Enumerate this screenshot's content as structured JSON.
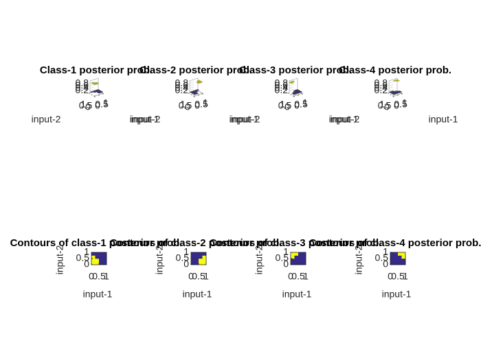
{
  "chart_data": [
    {
      "type": "surface",
      "title": "Class-1 posterior prob.",
      "xlabel": "input-1",
      "ylabel": "input-2",
      "xlim": [
        0,
        1
      ],
      "ylim": [
        0,
        1
      ],
      "zlim": [
        0,
        1
      ],
      "xticks": [
        0,
        0.5,
        1
      ],
      "yticks": [
        0,
        0.5,
        1
      ],
      "zticks": [
        0.2,
        0.4,
        0.6,
        0.8
      ],
      "colormap": [
        "#352a87",
        "#f9fb0e"
      ],
      "z": [
        [
          0.9,
          0.9,
          0.1,
          0.1
        ],
        [
          0.9,
          0.9,
          0.1,
          0.1
        ],
        [
          0.9,
          0.1,
          0.1,
          0.1
        ],
        [
          0.1,
          0.1,
          0.1,
          0.1
        ]
      ]
    },
    {
      "type": "surface",
      "title": "Class-2 posterior prob.",
      "xlabel": "input-1",
      "ylabel": "input-2",
      "xlim": [
        0,
        1
      ],
      "ylim": [
        0,
        1
      ],
      "zlim": [
        0,
        1
      ],
      "xticks": [
        0,
        0.5,
        1
      ],
      "yticks": [
        0,
        0.5,
        1
      ],
      "zticks": [
        0.2,
        0.4,
        0.6,
        0.8
      ],
      "colormap": [
        "#352a87",
        "#f9fb0e"
      ],
      "z": [
        [
          0.1,
          0.1,
          0.9,
          0.9
        ],
        [
          0.1,
          0.1,
          0.9,
          0.9
        ],
        [
          0.1,
          0.1,
          0.1,
          0.9
        ],
        [
          0.1,
          0.1,
          0.1,
          0.1
        ]
      ]
    },
    {
      "type": "surface",
      "title": "Class-3 posterior prob.",
      "xlabel": "input-1",
      "ylabel": "input-2",
      "xlim": [
        0,
        1
      ],
      "ylim": [
        0,
        1
      ],
      "zlim": [
        0,
        1
      ],
      "xticks": [
        0,
        0.5,
        1
      ],
      "yticks": [
        0,
        0.5,
        1
      ],
      "zticks": [
        0.2,
        0.4,
        0.6,
        0.8
      ],
      "colormap": [
        "#352a87",
        "#f9fb0e"
      ],
      "z": [
        [
          0.1,
          0.1,
          0.1,
          0.1
        ],
        [
          0.1,
          0.1,
          0.1,
          0.1
        ],
        [
          0.9,
          0.1,
          0.1,
          0.1
        ],
        [
          0.9,
          0.9,
          0.1,
          0.1
        ]
      ]
    },
    {
      "type": "surface",
      "title": "Class-4 posterior prob.",
      "xlabel": "input-1",
      "ylabel": "input-2",
      "xlim": [
        0,
        1
      ],
      "ylim": [
        0,
        1
      ],
      "zlim": [
        0,
        1
      ],
      "xticks": [
        0,
        0.5,
        1
      ],
      "yticks": [
        0,
        0.5,
        1
      ],
      "zticks": [
        0.2,
        0.4,
        0.6,
        0.8
      ],
      "colormap": [
        "#352a87",
        "#f9fb0e"
      ],
      "z": [
        [
          0.1,
          0.1,
          0.1,
          0.1
        ],
        [
          0.1,
          0.1,
          0.1,
          0.1
        ],
        [
          0.1,
          0.1,
          0.1,
          0.9
        ],
        [
          0.1,
          0.1,
          0.9,
          0.9
        ]
      ]
    },
    {
      "type": "contour",
      "title": "Contours of class-1 posterior prob.",
      "xlabel": "input-1",
      "ylabel": "input-2",
      "xlim": [
        0,
        1
      ],
      "ylim": [
        0,
        1
      ],
      "xticks": [
        0,
        0.5,
        1
      ],
      "yticks": [
        0,
        0.5,
        1
      ],
      "colormap": [
        "#352a87",
        "#f9fb0e"
      ],
      "z": [
        [
          1,
          1,
          0,
          0
        ],
        [
          1,
          1,
          0,
          0
        ],
        [
          1,
          0,
          0,
          0
        ],
        [
          0,
          0,
          0,
          0
        ]
      ]
    },
    {
      "type": "contour",
      "title": "Contours of class-2 posterior prob.",
      "xlabel": "input-1",
      "ylabel": "input-2",
      "xlim": [
        0,
        1
      ],
      "ylim": [
        0,
        1
      ],
      "xticks": [
        0,
        0.5,
        1
      ],
      "yticks": [
        0,
        0.5,
        1
      ],
      "colormap": [
        "#352a87",
        "#f9fb0e"
      ],
      "z": [
        [
          0,
          0,
          1,
          1
        ],
        [
          0,
          0,
          1,
          1
        ],
        [
          0,
          0,
          0,
          1
        ],
        [
          0,
          0,
          0,
          0
        ]
      ]
    },
    {
      "type": "contour",
      "title": "Contours of class-3 posterior prob.",
      "xlabel": "input-1",
      "ylabel": "input-2",
      "xlim": [
        0,
        1
      ],
      "ylim": [
        0,
        1
      ],
      "xticks": [
        0,
        0.5,
        1
      ],
      "yticks": [
        0,
        0.5,
        1
      ],
      "colormap": [
        "#352a87",
        "#f9fb0e"
      ],
      "z": [
        [
          0,
          0,
          0,
          0
        ],
        [
          0,
          0,
          0,
          0
        ],
        [
          1,
          0,
          0,
          0
        ],
        [
          1,
          1,
          0,
          0
        ]
      ]
    },
    {
      "type": "contour",
      "title": "Contours of class-4 posterior prob.",
      "xlabel": "input-1",
      "ylabel": "input-2",
      "xlim": [
        0,
        1
      ],
      "ylim": [
        0,
        1
      ],
      "xticks": [
        0,
        0.5,
        1
      ],
      "yticks": [
        0,
        0.5,
        1
      ],
      "colormap": [
        "#352a87",
        "#f9fb0e"
      ],
      "z": [
        [
          0,
          0,
          0,
          0
        ],
        [
          0,
          0,
          0,
          0
        ],
        [
          0,
          0,
          0,
          1
        ],
        [
          0,
          0,
          1,
          1
        ]
      ]
    }
  ]
}
